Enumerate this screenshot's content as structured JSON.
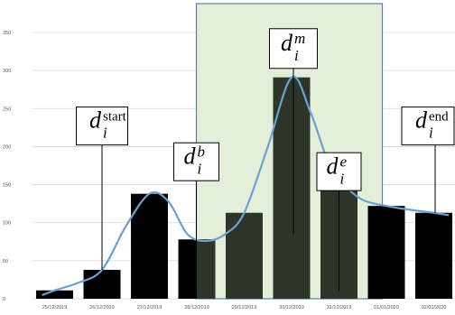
{
  "chart_data": {
    "type": "bar",
    "categories": [
      "25/12/2019",
      "26/12/2019",
      "27/12/2019",
      "28/12/2019",
      "29/12/2019",
      "30/12/2019",
      "31/12/2019",
      "01/01/2020",
      "02/01/2020"
    ],
    "values": [
      11,
      38,
      138,
      78,
      113,
      291,
      151,
      122,
      113
    ],
    "y_ticks": [
      "0",
      "50",
      "100",
      "150",
      "200",
      "250",
      "300",
      "350"
    ],
    "ylim": [
      0,
      350
    ],
    "grid": true,
    "trend_line": [
      [
        -0.25,
        5
      ],
      [
        0,
        11
      ],
      [
        0.5,
        21
      ],
      [
        1,
        38
      ],
      [
        1.5,
        95
      ],
      [
        2,
        138
      ],
      [
        2.4,
        128
      ],
      [
        2.8,
        85
      ],
      [
        3.2,
        76
      ],
      [
        3.6,
        85
      ],
      [
        4,
        113
      ],
      [
        4.5,
        200
      ],
      [
        5,
        291
      ],
      [
        5.4,
        245
      ],
      [
        5.8,
        175
      ],
      [
        6.1,
        150
      ],
      [
        6.5,
        130
      ],
      [
        7,
        122
      ],
      [
        7.5,
        117
      ],
      [
        8,
        113
      ],
      [
        8.3,
        110
      ]
    ],
    "highlight_range": [
      "28/12/2019",
      "31/12/2019"
    ],
    "colors": {
      "bar": "#000000",
      "bar_in_highlight": "#2c3528",
      "highlight_fill": "#e3efd8",
      "highlight_border": "#5a81a8",
      "trend_line": "#6aa1d4",
      "grid": "#d6d6d6",
      "callout_line": "#000000"
    },
    "callouts": [
      {
        "id": "start",
        "symbol": "d",
        "subscript": "i",
        "superscript": "start",
        "category": "26/12/2019",
        "anchor_value": 38,
        "top_value": 252
      },
      {
        "id": "b",
        "symbol": "d",
        "subscript": "i",
        "superscript": "b",
        "category": "28/12/2019",
        "anchor_value": 0,
        "top_value": 205
      },
      {
        "id": "m",
        "symbol": "d",
        "subscript": "i",
        "superscript": "m",
        "category": "30/12/2019",
        "anchor_value": 85,
        "top_value": 355
      },
      {
        "id": "e",
        "symbol": "d",
        "subscript": "i",
        "superscript": "e",
        "category": "31/12/2019",
        "anchor_value": 10,
        "top_value": 192
      },
      {
        "id": "end",
        "symbol": "d",
        "subscript": "i",
        "superscript": "end",
        "category": "02/01/2020",
        "anchor_value": 113,
        "top_value": 252
      }
    ]
  }
}
